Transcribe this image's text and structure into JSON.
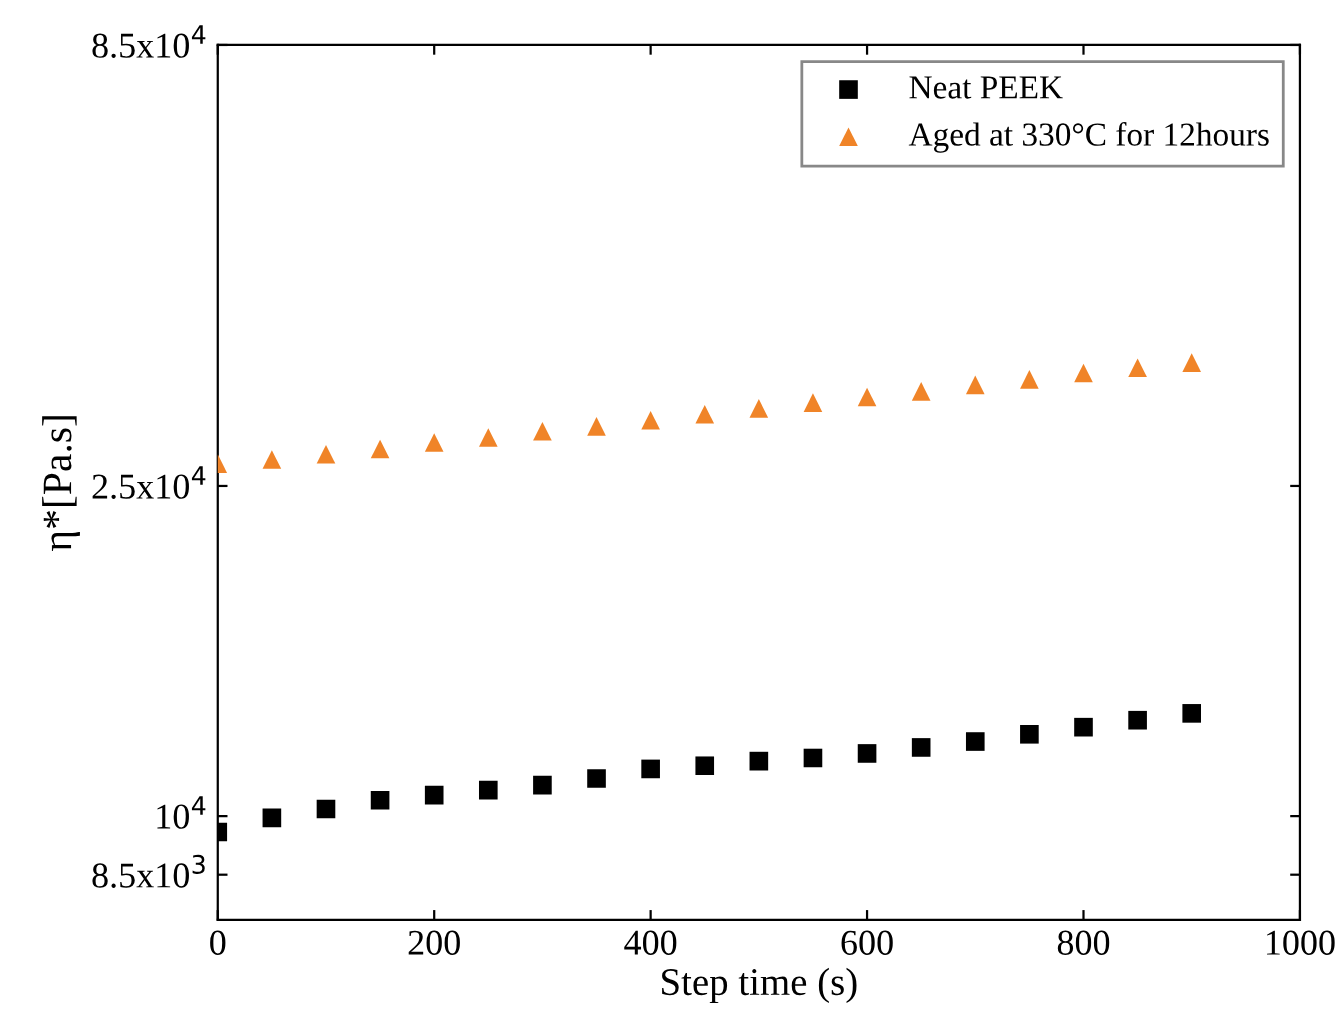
{
  "chart_data": {
    "type": "scatter",
    "xlabel": "Step time (s)",
    "ylabel": "η*[Pa.s]",
    "log": "y",
    "xlim": [
      0,
      1000
    ],
    "xticks": [
      0,
      200,
      400,
      600,
      800,
      1000
    ],
    "ylim": [
      7500,
      85000
    ],
    "yticks": [
      {
        "value": 8500,
        "label": "8.5x10$^{3}$"
      },
      {
        "value": 10000,
        "label": "10$^{4}$"
      },
      {
        "value": 25000,
        "label": "2.5x10$^{4}$"
      },
      {
        "value": 85000,
        "label": "8.5x10$^{4}$"
      }
    ],
    "legend": "top right",
    "grid": false,
    "series": [
      {
        "name": "Neat PEEK",
        "color": "#000000",
        "marker": "square",
        "x": [
          0,
          50,
          100,
          150,
          200,
          250,
          300,
          350,
          400,
          450,
          500,
          550,
          600,
          650,
          700,
          750,
          800,
          850,
          900
        ],
        "values": [
          9570,
          9950,
          10200,
          10450,
          10600,
          10750,
          10900,
          11100,
          11400,
          11500,
          11650,
          11750,
          11900,
          12100,
          12300,
          12550,
          12800,
          13050,
          13300
        ]
      },
      {
        "name": "Aged at 330°C for 12hours",
        "color": "#f08428",
        "marker": "triangle",
        "x": [
          0,
          50,
          100,
          150,
          200,
          250,
          300,
          350,
          400,
          450,
          500,
          550,
          600,
          650,
          700,
          750,
          800,
          850,
          900
        ],
        "values": [
          26600,
          26900,
          27300,
          27700,
          28200,
          28600,
          29100,
          29500,
          30000,
          30500,
          31000,
          31500,
          32000,
          32500,
          33100,
          33600,
          34200,
          34700,
          35200
        ]
      }
    ]
  }
}
